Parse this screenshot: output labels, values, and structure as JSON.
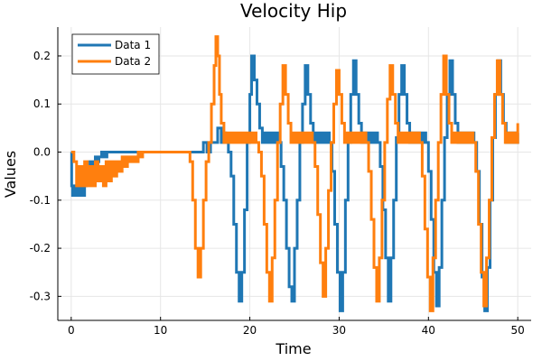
{
  "chart_data": {
    "type": "line",
    "title": "Velocity Hip",
    "xlabel": "Time",
    "ylabel": "Values",
    "xlim": [
      -1.5,
      51.5
    ],
    "ylim": [
      -0.35,
      0.26
    ],
    "xticks": [
      0,
      10,
      20,
      30,
      40,
      50
    ],
    "yticks": [
      -0.3,
      -0.2,
      -0.1,
      0.0,
      0.1,
      0.2
    ],
    "ytick_labels": [
      "-0.3",
      "-0.2",
      "-0.1",
      "0.0",
      "0.1",
      "0.2"
    ],
    "grid": true,
    "legend_position": "top-left",
    "series": [
      {
        "name": "Data 1",
        "color": "#1f77b4",
        "x": [
          0,
          0.05,
          0.15,
          0.3,
          0.5,
          0.7,
          0.9,
          1.1,
          1.3,
          1.5,
          1.7,
          1.9,
          2.1,
          2.3,
          2.5,
          2.7,
          2.9,
          3.1,
          3.4,
          3.7,
          4.0,
          4.5,
          5,
          6,
          7,
          8,
          9,
          10,
          11,
          12,
          13,
          13.5,
          14,
          14.5,
          14.8,
          15.2,
          15.6,
          16,
          16.4,
          16.8,
          17,
          17.3,
          17.6,
          17.9,
          18.2,
          18.5,
          18.8,
          19.1,
          19.4,
          19.7,
          20,
          20.2,
          20.5,
          20.8,
          21.1,
          21.4,
          21.7,
          22,
          22.3,
          22.6,
          22.9,
          23.2,
          23.5,
          23.8,
          24.1,
          24.4,
          24.7,
          25,
          25.3,
          25.6,
          25.9,
          26.2,
          26.5,
          26.8,
          27.1,
          27.4,
          27.7,
          28,
          28.3,
          28.6,
          28.9,
          29.2,
          29.5,
          29.8,
          30.1,
          30.4,
          30.7,
          31,
          31.3,
          31.6,
          31.9,
          32.2,
          32.5,
          32.8,
          33.1,
          33.4,
          33.7,
          34,
          34.3,
          34.6,
          34.9,
          35.2,
          35.5,
          35.8,
          36.1,
          36.4,
          36.7,
          37,
          37.3,
          37.6,
          37.9,
          38.2,
          38.5,
          38.8,
          39.1,
          39.4,
          39.7,
          40,
          40.3,
          40.6,
          40.9,
          41.2,
          41.5,
          41.8,
          42.1,
          42.4,
          42.7,
          43,
          43.3,
          43.6,
          43.9,
          44.2,
          44.5,
          44.8,
          45.1,
          45.4,
          45.7,
          46,
          46.3,
          46.6,
          46.9,
          47.2,
          47.5,
          47.8,
          48.1,
          48.4,
          48.7,
          49,
          49.3,
          49.6,
          49.9,
          50
        ],
        "y": [
          0,
          -0.07,
          -0.09,
          -0.07,
          -0.09,
          -0.07,
          -0.09,
          -0.07,
          -0.09,
          -0.07,
          -0.05,
          -0.03,
          -0.02,
          -0.03,
          -0.02,
          -0.01,
          -0.02,
          -0.01,
          0,
          -0.01,
          0,
          0,
          0,
          0,
          0,
          0,
          0,
          0,
          0,
          0,
          0,
          0,
          0,
          0,
          0.02,
          0,
          0.02,
          0.02,
          0.05,
          0.02,
          0.04,
          0.02,
          0,
          -0.05,
          -0.15,
          -0.25,
          -0.31,
          -0.25,
          -0.12,
          0.02,
          0.12,
          0.2,
          0.15,
          0.1,
          0.05,
          0.02,
          0.04,
          0.02,
          0.04,
          0.02,
          0.04,
          0.02,
          -0.03,
          -0.1,
          -0.2,
          -0.28,
          -0.31,
          -0.2,
          -0.1,
          0.02,
          0.1,
          0.18,
          0.12,
          0.06,
          0.02,
          0.04,
          0.02,
          0.04,
          0.02,
          0.04,
          0.02,
          -0.04,
          -0.15,
          -0.25,
          -0.33,
          -0.25,
          -0.1,
          0.02,
          0.12,
          0.19,
          0.12,
          0.06,
          0.02,
          0.04,
          0.02,
          0.04,
          0.02,
          0.04,
          0.02,
          -0.03,
          -0.12,
          -0.22,
          -0.31,
          -0.22,
          -0.1,
          0.03,
          0.12,
          0.18,
          0.12,
          0.06,
          0.02,
          0.04,
          0.02,
          0.04,
          0.02,
          0.04,
          0.02,
          -0.04,
          -0.14,
          -0.25,
          -0.32,
          -0.24,
          -0.1,
          0.03,
          0.12,
          0.19,
          0.12,
          0.06,
          0.02,
          0.04,
          0.02,
          0.04,
          0.02,
          0.04,
          0.02,
          -0.04,
          -0.15,
          -0.26,
          -0.33,
          -0.24,
          -0.1,
          0.03,
          0.12,
          0.19,
          0.12,
          0.06,
          0.02,
          0.04,
          0.02,
          0.04,
          0.02,
          0.04
        ]
      },
      {
        "name": "Data 2",
        "color": "#ff7f0e",
        "x": [
          0,
          0.3,
          0.6,
          0.9,
          1.2,
          1.5,
          1.8,
          2.1,
          2.4,
          2.7,
          3.0,
          3.3,
          3.6,
          3.9,
          4.2,
          4.5,
          4.8,
          5.1,
          5.4,
          5.7,
          6.0,
          6.3,
          6.6,
          6.9,
          7.2,
          7.5,
          7.8,
          8.0,
          8.1,
          9,
          10,
          11,
          12,
          12.5,
          13,
          13.3,
          13.6,
          13.9,
          14.2,
          14.5,
          14.8,
          15.1,
          15.4,
          15.7,
          16,
          16.2,
          16.4,
          16.6,
          16.8,
          17.1,
          17.4,
          17.7,
          18,
          18.3,
          18.6,
          18.9,
          19.2,
          19.5,
          19.8,
          20.1,
          20.4,
          20.7,
          21,
          21.3,
          21.6,
          21.9,
          22.2,
          22.5,
          22.8,
          23.1,
          23.4,
          23.7,
          24,
          24.3,
          24.6,
          24.9,
          25.2,
          25.5,
          25.8,
          26.1,
          26.4,
          26.7,
          27,
          27.3,
          27.6,
          27.9,
          28.2,
          28.5,
          28.8,
          29.1,
          29.4,
          29.7,
          30,
          30.3,
          30.6,
          30.9,
          31.2,
          31.5,
          31.8,
          32.1,
          32.4,
          32.7,
          33,
          33.3,
          33.6,
          33.9,
          34.2,
          34.5,
          34.8,
          35.1,
          35.4,
          35.7,
          36,
          36.3,
          36.6,
          36.9,
          37.2,
          37.5,
          37.8,
          38.1,
          38.4,
          38.7,
          39,
          39.3,
          39.6,
          39.9,
          40.2,
          40.5,
          40.8,
          41.1,
          41.4,
          41.7,
          42,
          42.3,
          42.6,
          42.9,
          43.2,
          43.5,
          43.8,
          44.1,
          44.4,
          44.7,
          45,
          45.3,
          45.6,
          45.9,
          46.2,
          46.5,
          46.8,
          47.1,
          47.4,
          47.7,
          48,
          48.3,
          48.6,
          48.9,
          49.2,
          49.5,
          49.8,
          50
        ],
        "y": [
          0,
          -0.02,
          -0.07,
          -0.03,
          -0.07,
          -0.02,
          -0.07,
          -0.03,
          -0.07,
          -0.02,
          -0.06,
          -0.03,
          -0.07,
          -0.02,
          -0.06,
          -0.02,
          -0.05,
          -0.02,
          -0.04,
          -0.01,
          -0.03,
          -0.01,
          -0.02,
          -0.01,
          -0.02,
          0,
          -0.01,
          0,
          0,
          0,
          0,
          0,
          0,
          0,
          0,
          -0.02,
          -0.1,
          -0.2,
          -0.26,
          -0.2,
          -0.1,
          -0.02,
          0.02,
          0.1,
          0.18,
          0.24,
          0.2,
          0.12,
          0.06,
          0.02,
          0.04,
          0.02,
          0.04,
          0.02,
          0.04,
          0.02,
          0.04,
          0.02,
          0.04,
          0.02,
          0.04,
          0.02,
          0,
          -0.05,
          -0.15,
          -0.25,
          -0.31,
          -0.22,
          -0.1,
          0.02,
          0.1,
          0.18,
          0.12,
          0.06,
          0.02,
          0.04,
          0.02,
          0.04,
          0.02,
          0.04,
          0.02,
          0.04,
          0.02,
          -0.03,
          -0.13,
          -0.23,
          -0.3,
          -0.2,
          -0.08,
          0.02,
          0.1,
          0.17,
          0.12,
          0.06,
          0.02,
          0.04,
          0.02,
          0.04,
          0.02,
          0.04,
          0.02,
          0.04,
          0.02,
          -0.04,
          -0.14,
          -0.24,
          -0.31,
          -0.22,
          -0.1,
          0.02,
          0.11,
          0.18,
          0.12,
          0.06,
          0.02,
          0.04,
          0.02,
          0.04,
          0.02,
          0.04,
          0.02,
          0.04,
          0.02,
          -0.05,
          -0.16,
          -0.26,
          -0.33,
          -0.22,
          -0.1,
          0.02,
          0.12,
          0.2,
          0.12,
          0.06,
          0.02,
          0.04,
          0.02,
          0.04,
          0.02,
          0.04,
          0.02,
          0.04,
          0.02,
          -0.04,
          -0.15,
          -0.25,
          -0.32,
          -0.22,
          -0.1,
          0.03,
          0.12,
          0.19,
          0.12,
          0.06,
          0.02,
          0.04,
          0.02,
          0.04,
          0.02,
          0.06
        ]
      }
    ]
  }
}
